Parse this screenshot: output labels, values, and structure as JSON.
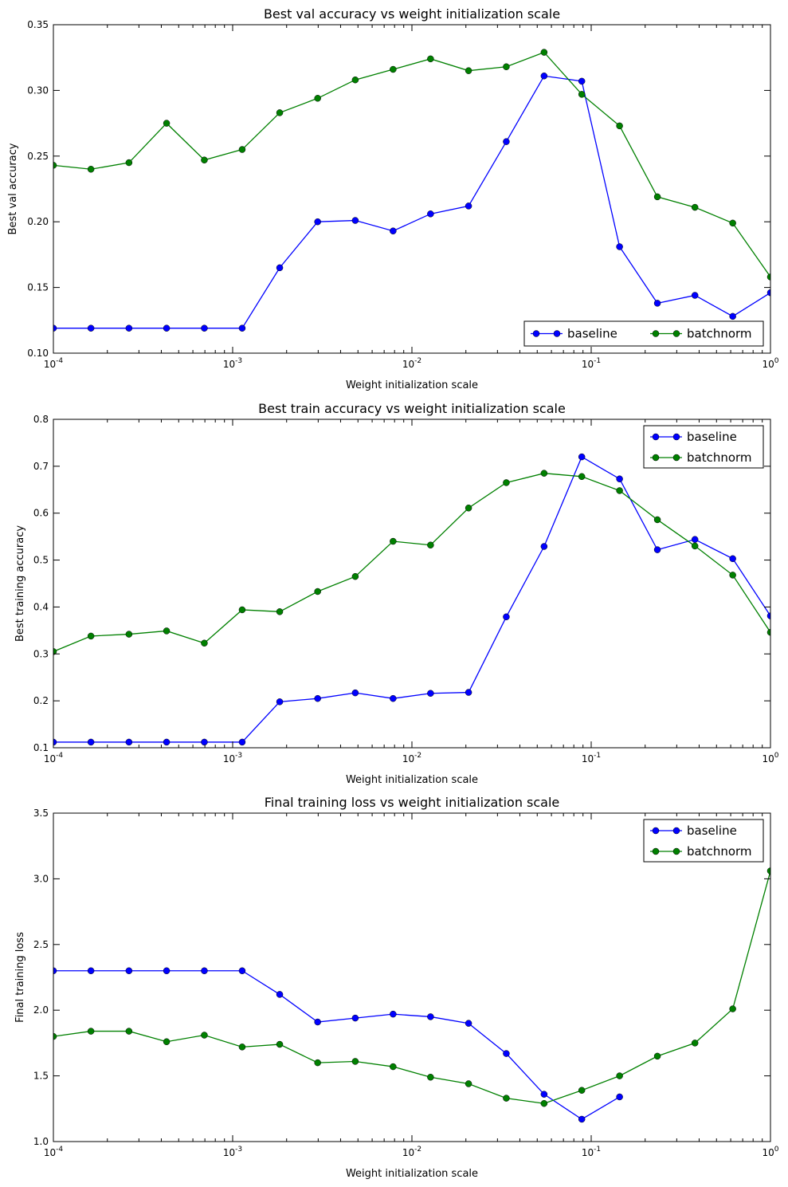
{
  "colors": {
    "baseline": "#0000ff",
    "batchnorm": "#008000",
    "axis": "#000000",
    "background": "#ffffff"
  },
  "chart_data": [
    {
      "type": "line",
      "title": "Best val accuracy vs weight initialization scale",
      "xlabel": "Weight initialization scale",
      "ylabel": "Best val accuracy",
      "xscale": "log",
      "xlim": [
        0.0001,
        1
      ],
      "ylim": [
        0.1,
        0.35
      ],
      "yticks": [
        0.1,
        0.15,
        0.2,
        0.25,
        0.3,
        0.35
      ],
      "ytick_labels": [
        "0.10",
        "0.15",
        "0.20",
        "0.25",
        "0.30",
        "0.35"
      ],
      "legend": {
        "position": "lower-right",
        "ncol": 2
      },
      "x": [
        0.0001,
        0.000162,
        0.000264,
        0.000428,
        0.000695,
        0.00113,
        0.00183,
        0.00298,
        0.00483,
        0.00785,
        0.0127,
        0.0207,
        0.0336,
        0.0546,
        0.0886,
        0.144,
        0.234,
        0.379,
        0.616,
        1.0
      ],
      "series": [
        {
          "name": "baseline",
          "values": [
            0.119,
            0.119,
            0.119,
            0.119,
            0.119,
            0.119,
            0.165,
            0.2,
            0.201,
            0.193,
            0.206,
            0.212,
            0.261,
            0.311,
            0.307,
            0.181,
            0.138,
            0.144,
            0.128,
            0.146
          ]
        },
        {
          "name": "batchnorm",
          "values": [
            0.243,
            0.24,
            0.245,
            0.275,
            0.247,
            0.255,
            0.283,
            0.294,
            0.308,
            0.316,
            0.324,
            0.315,
            0.318,
            0.329,
            0.297,
            0.273,
            0.219,
            0.211,
            0.199,
            0.158
          ]
        }
      ]
    },
    {
      "type": "line",
      "title": "Best train accuracy vs weight initialization scale",
      "xlabel": "Weight initialization scale",
      "ylabel": "Best training accuracy",
      "xscale": "log",
      "xlim": [
        0.0001,
        1
      ],
      "ylim": [
        0.1,
        0.8
      ],
      "yticks": [
        0.1,
        0.2,
        0.3,
        0.4,
        0.5,
        0.6,
        0.7,
        0.8
      ],
      "ytick_labels": [
        "0.1",
        "0.2",
        "0.3",
        "0.4",
        "0.5",
        "0.6",
        "0.7",
        "0.8"
      ],
      "legend": {
        "position": "upper-right",
        "ncol": 1
      },
      "x": [
        0.0001,
        0.000162,
        0.000264,
        0.000428,
        0.000695,
        0.00113,
        0.00183,
        0.00298,
        0.00483,
        0.00785,
        0.0127,
        0.0207,
        0.0336,
        0.0546,
        0.0886,
        0.144,
        0.234,
        0.379,
        0.616,
        1.0
      ],
      "series": [
        {
          "name": "baseline",
          "values": [
            0.112,
            0.112,
            0.112,
            0.112,
            0.112,
            0.112,
            0.198,
            0.205,
            0.217,
            0.205,
            0.216,
            0.218,
            0.379,
            0.529,
            0.72,
            0.673,
            0.522,
            0.544,
            0.503,
            0.381
          ]
        },
        {
          "name": "batchnorm",
          "values": [
            0.305,
            0.338,
            0.342,
            0.349,
            0.323,
            0.394,
            0.39,
            0.433,
            0.465,
            0.54,
            0.532,
            0.611,
            0.665,
            0.685,
            0.678,
            0.648,
            0.586,
            0.53,
            0.468,
            0.346
          ]
        }
      ]
    },
    {
      "type": "line",
      "title": "Final training loss vs weight initialization scale",
      "xlabel": "Weight initialization scale",
      "ylabel": "Final training loss",
      "xscale": "log",
      "xlim": [
        0.0001,
        1
      ],
      "ylim": [
        1.0,
        3.5
      ],
      "yticks": [
        1.0,
        1.5,
        2.0,
        2.5,
        3.0,
        3.5
      ],
      "ytick_labels": [
        "1.0",
        "1.5",
        "2.0",
        "2.5",
        "3.0",
        "3.5"
      ],
      "legend": {
        "position": "upper-right",
        "ncol": 1
      },
      "x": [
        0.0001,
        0.000162,
        0.000264,
        0.000428,
        0.000695,
        0.00113,
        0.00183,
        0.00298,
        0.00483,
        0.00785,
        0.0127,
        0.0207,
        0.0336,
        0.0546,
        0.0886,
        0.144,
        0.234,
        0.379,
        0.616,
        1.0
      ],
      "series": [
        {
          "name": "baseline",
          "values": [
            2.3,
            2.3,
            2.3,
            2.3,
            2.3,
            2.3,
            2.12,
            1.91,
            1.94,
            1.97,
            1.95,
            1.9,
            1.67,
            1.36,
            1.17,
            1.34,
            null,
            null,
            null,
            null
          ]
        },
        {
          "name": "batchnorm",
          "values": [
            1.8,
            1.84,
            1.84,
            1.76,
            1.81,
            1.72,
            1.74,
            1.6,
            1.61,
            1.57,
            1.49,
            1.44,
            1.33,
            1.29,
            1.39,
            1.5,
            1.65,
            1.75,
            2.01,
            3.06
          ]
        }
      ]
    }
  ]
}
